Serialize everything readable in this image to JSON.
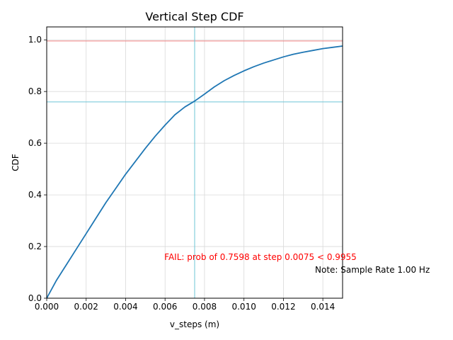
{
  "chart_data": {
    "type": "line",
    "title": "Vertical Step CDF",
    "xlabel": "v_steps (m)",
    "ylabel": "CDF",
    "xlim": [
      0,
      0.015
    ],
    "ylim": [
      0,
      1.05
    ],
    "xticks": [
      "0.000",
      "0.002",
      "0.004",
      "0.006",
      "0.008",
      "0.010",
      "0.012",
      "0.014"
    ],
    "xtick_values": [
      0,
      0.002,
      0.004,
      0.006,
      0.008,
      0.01,
      0.012,
      0.014
    ],
    "yticks": [
      "0.0",
      "0.2",
      "0.4",
      "0.6",
      "0.8",
      "1.0"
    ],
    "ytick_values": [
      0,
      0.2,
      0.4,
      0.6,
      0.8,
      1.0
    ],
    "grid": true,
    "series": [
      {
        "color": "#1f77b4",
        "x": [
          0,
          0.0005,
          0.001,
          0.0015,
          0.002,
          0.0025,
          0.003,
          0.0035,
          0.004,
          0.0045,
          0.005,
          0.0055,
          0.006,
          0.0065,
          0.007,
          0.0075,
          0.008,
          0.0085,
          0.009,
          0.0095,
          0.01,
          0.0105,
          0.011,
          0.0115,
          0.012,
          0.0125,
          0.013,
          0.0135,
          0.014,
          0.0145,
          0.015
        ],
        "y": [
          0.0,
          0.07,
          0.13,
          0.19,
          0.25,
          0.31,
          0.37,
          0.425,
          0.48,
          0.53,
          0.58,
          0.627,
          0.67,
          0.71,
          0.74,
          0.763,
          0.79,
          0.818,
          0.842,
          0.862,
          0.88,
          0.896,
          0.91,
          0.922,
          0.934,
          0.944,
          0.952,
          0.959,
          0.966,
          0.971,
          0.976
        ]
      }
    ],
    "reference_lines": [
      {
        "orientation": "horizontal",
        "value": 0.9955,
        "color": "#f08080"
      },
      {
        "orientation": "horizontal",
        "value": 0.7598,
        "color": "#6cc5d6"
      },
      {
        "orientation": "vertical",
        "value": 0.0075,
        "color": "#6cc5d6"
      }
    ],
    "annotations": [
      {
        "text": "FAIL: prob of 0.7598 at step 0.0075 < 0.9955",
        "color": "#ff0000"
      },
      {
        "text": "Note: Sample Rate 1.00 Hz",
        "color": "#000000"
      }
    ]
  }
}
